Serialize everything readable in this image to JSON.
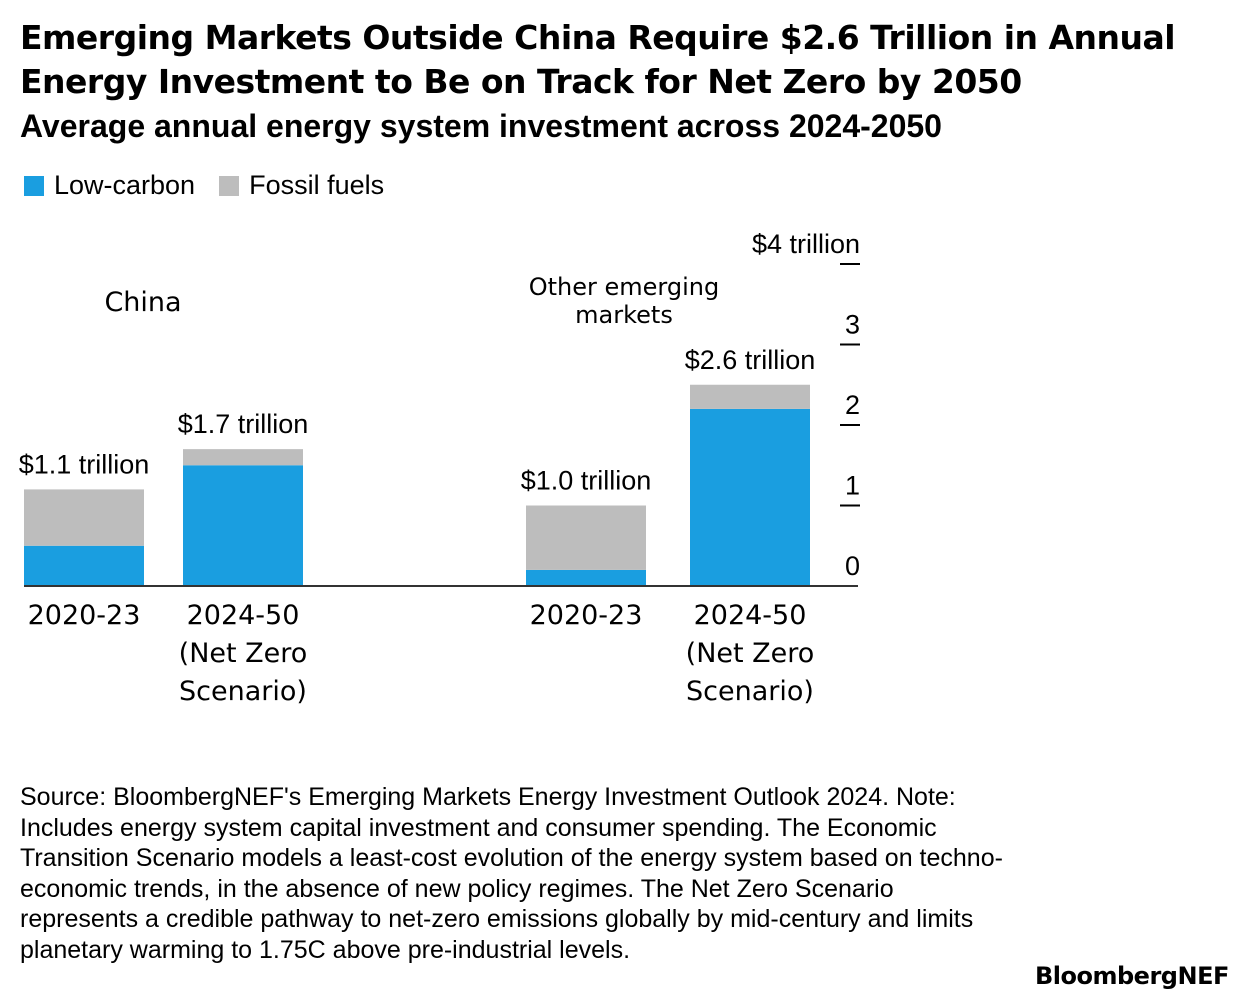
{
  "title": "Emerging Markets Outside China Require $2.6 Trillion in Annual Energy Investment to Be on Track for Net Zero by 2050",
  "subtitle": "Average annual energy system investment across 2024-2050",
  "legend": [
    {
      "label": "Low-carbon",
      "color": "#1a9ee0"
    },
    {
      "label": "Fossil fuels",
      "color": "#bdbdbd"
    }
  ],
  "chart_data": {
    "type": "bar",
    "stacked": true,
    "groups": [
      {
        "label": "China",
        "bars": [
          {
            "category": "2020-23",
            "category_lines": [
              "2020-23"
            ],
            "total_label": "$1.1 trillion",
            "low_carbon": 0.5,
            "fossil": 0.7
          },
          {
            "category": "2024-50 (Net Zero Scenario)",
            "category_lines": [
              "2024-50",
              "(Net Zero",
              "Scenario)"
            ],
            "total_label": "$1.7 trillion",
            "low_carbon": 1.5,
            "fossil": 0.2
          }
        ]
      },
      {
        "label": "Other emerging markets",
        "label_lines": [
          "Other emerging",
          "markets"
        ],
        "bars": [
          {
            "category": "2020-23",
            "category_lines": [
              "2020-23"
            ],
            "total_label": "$1.0 trillion",
            "low_carbon": 0.2,
            "fossil": 0.8
          },
          {
            "category": "2024-50 (Net Zero Scenario)",
            "category_lines": [
              "2024-50",
              "(Net Zero",
              "Scenario)"
            ],
            "total_label": "$2.6 trillion",
            "low_carbon": 2.2,
            "fossil": 0.3
          }
        ]
      }
    ],
    "series": [
      {
        "name": "Low-carbon",
        "color": "#1a9ee0"
      },
      {
        "name": "Fossil fuels",
        "color": "#bdbdbd"
      }
    ],
    "y_ticks": [
      0,
      1,
      2,
      3,
      4
    ],
    "y_tick_labels": [
      "0",
      "1",
      "2",
      "3",
      "$4 trillion"
    ],
    "ylim": [
      0,
      4
    ],
    "ylabel": "",
    "xlabel": "",
    "axis_side": "right",
    "grid": false
  },
  "source": "Source: BloombergNEF's Emerging Markets Energy Investment Outlook 2024. Note: Includes energy system capital investment and consumer spending. The Economic Transition Scenario models a least-cost evolution of the energy system based on techno-economic trends, in the absence of new policy regimes. The Net Zero Scenario represents a credible pathway to net-zero emissions globally by mid-century and limits planetary warming to 1.75C above pre-industrial levels.",
  "brand": "BloombergNEF"
}
